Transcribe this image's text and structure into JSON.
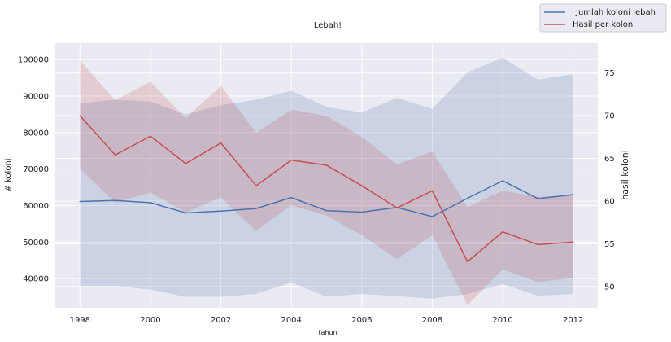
{
  "chart_data": {
    "type": "line",
    "title": "Lebah!",
    "xlabel": "tahun",
    "ylabel_left": "# koloni",
    "ylabel_right": "hasil koloni",
    "x": [
      1998,
      1999,
      2000,
      2001,
      2002,
      2003,
      2004,
      2005,
      2006,
      2007,
      2008,
      2009,
      2010,
      2011,
      2012
    ],
    "x_ticks": [
      "1998",
      "2000",
      "2002",
      "2004",
      "2006",
      "2008",
      "2010",
      "2012"
    ],
    "xlim": [
      1997.3,
      2012.7
    ],
    "y_left_ticks": [
      "40000",
      "50000",
      "60000",
      "70000",
      "80000",
      "90000",
      "100000"
    ],
    "ylim_left": [
      32000,
      104500
    ],
    "y_right_ticks": [
      "50",
      "55",
      "60",
      "65",
      "70",
      "75"
    ],
    "ylim_right": [
      47.5,
      78.5
    ],
    "grid": true,
    "legend_position": "top-right",
    "series": [
      {
        "name": "Jumlah koloni lebah",
        "axis": "left",
        "color": "#4c72b0",
        "values": [
          61100,
          61400,
          60800,
          58000,
          58500,
          59200,
          62200,
          58600,
          58200,
          59500,
          57000,
          62000,
          66800,
          61900,
          63000
        ],
        "band_upper": [
          88000,
          89000,
          88500,
          85000,
          87500,
          89000,
          91500,
          87000,
          85500,
          89500,
          86500,
          96500,
          100500,
          94500,
          96000
        ],
        "band_lower": [
          38000,
          38000,
          37000,
          35000,
          35000,
          35800,
          39000,
          35000,
          35800,
          35200,
          34500,
          35800,
          38500,
          35300,
          35800
        ]
      },
      {
        "name": "Hasil per koloni",
        "axis": "right",
        "color": "#c44e52",
        "values": [
          70.0,
          65.4,
          67.6,
          64.4,
          66.8,
          61.8,
          64.8,
          64.2,
          61.8,
          59.2,
          61.2,
          52.9,
          56.4,
          54.9,
          55.2
        ],
        "band_upper": [
          76.5,
          71.8,
          74.0,
          69.7,
          73.5,
          68.0,
          70.7,
          70.0,
          67.5,
          64.3,
          65.8,
          59.3,
          61.2,
          60.5,
          60.7
        ],
        "band_lower": [
          63.8,
          59.8,
          61.0,
          58.7,
          60.4,
          56.5,
          59.5,
          58.3,
          56.0,
          53.2,
          56.0,
          47.8,
          52.0,
          50.5,
          51.0
        ]
      }
    ]
  }
}
